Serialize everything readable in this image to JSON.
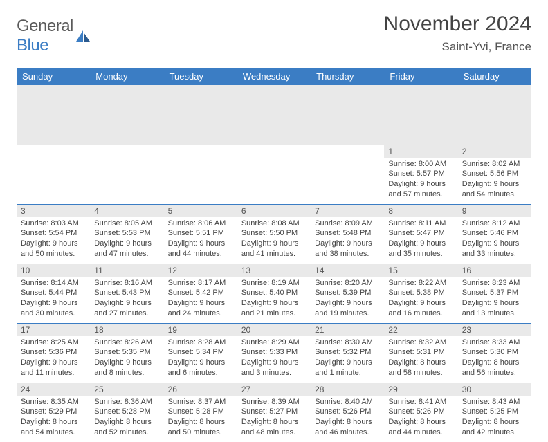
{
  "logo": {
    "word1": "General",
    "word2": "Blue"
  },
  "title": "November 2024",
  "location": "Saint-Yvi, France",
  "colors": {
    "header_bg": "#3b7dc4",
    "header_text": "#ffffff",
    "daynum_bg": "#e9e9e9",
    "border": "#3b7dc4",
    "body_text": "#444444"
  },
  "weekdays": [
    "Sunday",
    "Monday",
    "Tuesday",
    "Wednesday",
    "Thursday",
    "Friday",
    "Saturday"
  ],
  "weeks": [
    [
      {
        "empty": true
      },
      {
        "empty": true
      },
      {
        "empty": true
      },
      {
        "empty": true
      },
      {
        "empty": true
      },
      {
        "n": "1",
        "sr": "8:00 AM",
        "ss": "5:57 PM",
        "dl": "9 hours and 57 minutes."
      },
      {
        "n": "2",
        "sr": "8:02 AM",
        "ss": "5:56 PM",
        "dl": "9 hours and 54 minutes."
      }
    ],
    [
      {
        "n": "3",
        "sr": "8:03 AM",
        "ss": "5:54 PM",
        "dl": "9 hours and 50 minutes."
      },
      {
        "n": "4",
        "sr": "8:05 AM",
        "ss": "5:53 PM",
        "dl": "9 hours and 47 minutes."
      },
      {
        "n": "5",
        "sr": "8:06 AM",
        "ss": "5:51 PM",
        "dl": "9 hours and 44 minutes."
      },
      {
        "n": "6",
        "sr": "8:08 AM",
        "ss": "5:50 PM",
        "dl": "9 hours and 41 minutes."
      },
      {
        "n": "7",
        "sr": "8:09 AM",
        "ss": "5:48 PM",
        "dl": "9 hours and 38 minutes."
      },
      {
        "n": "8",
        "sr": "8:11 AM",
        "ss": "5:47 PM",
        "dl": "9 hours and 35 minutes."
      },
      {
        "n": "9",
        "sr": "8:12 AM",
        "ss": "5:46 PM",
        "dl": "9 hours and 33 minutes."
      }
    ],
    [
      {
        "n": "10",
        "sr": "8:14 AM",
        "ss": "5:44 PM",
        "dl": "9 hours and 30 minutes."
      },
      {
        "n": "11",
        "sr": "8:16 AM",
        "ss": "5:43 PM",
        "dl": "9 hours and 27 minutes."
      },
      {
        "n": "12",
        "sr": "8:17 AM",
        "ss": "5:42 PM",
        "dl": "9 hours and 24 minutes."
      },
      {
        "n": "13",
        "sr": "8:19 AM",
        "ss": "5:40 PM",
        "dl": "9 hours and 21 minutes."
      },
      {
        "n": "14",
        "sr": "8:20 AM",
        "ss": "5:39 PM",
        "dl": "9 hours and 19 minutes."
      },
      {
        "n": "15",
        "sr": "8:22 AM",
        "ss": "5:38 PM",
        "dl": "9 hours and 16 minutes."
      },
      {
        "n": "16",
        "sr": "8:23 AM",
        "ss": "5:37 PM",
        "dl": "9 hours and 13 minutes."
      }
    ],
    [
      {
        "n": "17",
        "sr": "8:25 AM",
        "ss": "5:36 PM",
        "dl": "9 hours and 11 minutes."
      },
      {
        "n": "18",
        "sr": "8:26 AM",
        "ss": "5:35 PM",
        "dl": "9 hours and 8 minutes."
      },
      {
        "n": "19",
        "sr": "8:28 AM",
        "ss": "5:34 PM",
        "dl": "9 hours and 6 minutes."
      },
      {
        "n": "20",
        "sr": "8:29 AM",
        "ss": "5:33 PM",
        "dl": "9 hours and 3 minutes."
      },
      {
        "n": "21",
        "sr": "8:30 AM",
        "ss": "5:32 PM",
        "dl": "9 hours and 1 minute."
      },
      {
        "n": "22",
        "sr": "8:32 AM",
        "ss": "5:31 PM",
        "dl": "8 hours and 58 minutes."
      },
      {
        "n": "23",
        "sr": "8:33 AM",
        "ss": "5:30 PM",
        "dl": "8 hours and 56 minutes."
      }
    ],
    [
      {
        "n": "24",
        "sr": "8:35 AM",
        "ss": "5:29 PM",
        "dl": "8 hours and 54 minutes."
      },
      {
        "n": "25",
        "sr": "8:36 AM",
        "ss": "5:28 PM",
        "dl": "8 hours and 52 minutes."
      },
      {
        "n": "26",
        "sr": "8:37 AM",
        "ss": "5:28 PM",
        "dl": "8 hours and 50 minutes."
      },
      {
        "n": "27",
        "sr": "8:39 AM",
        "ss": "5:27 PM",
        "dl": "8 hours and 48 minutes."
      },
      {
        "n": "28",
        "sr": "8:40 AM",
        "ss": "5:26 PM",
        "dl": "8 hours and 46 minutes."
      },
      {
        "n": "29",
        "sr": "8:41 AM",
        "ss": "5:26 PM",
        "dl": "8 hours and 44 minutes."
      },
      {
        "n": "30",
        "sr": "8:43 AM",
        "ss": "5:25 PM",
        "dl": "8 hours and 42 minutes."
      }
    ]
  ],
  "labels": {
    "sunrise": "Sunrise: ",
    "sunset": "Sunset: ",
    "daylight": "Daylight: "
  }
}
